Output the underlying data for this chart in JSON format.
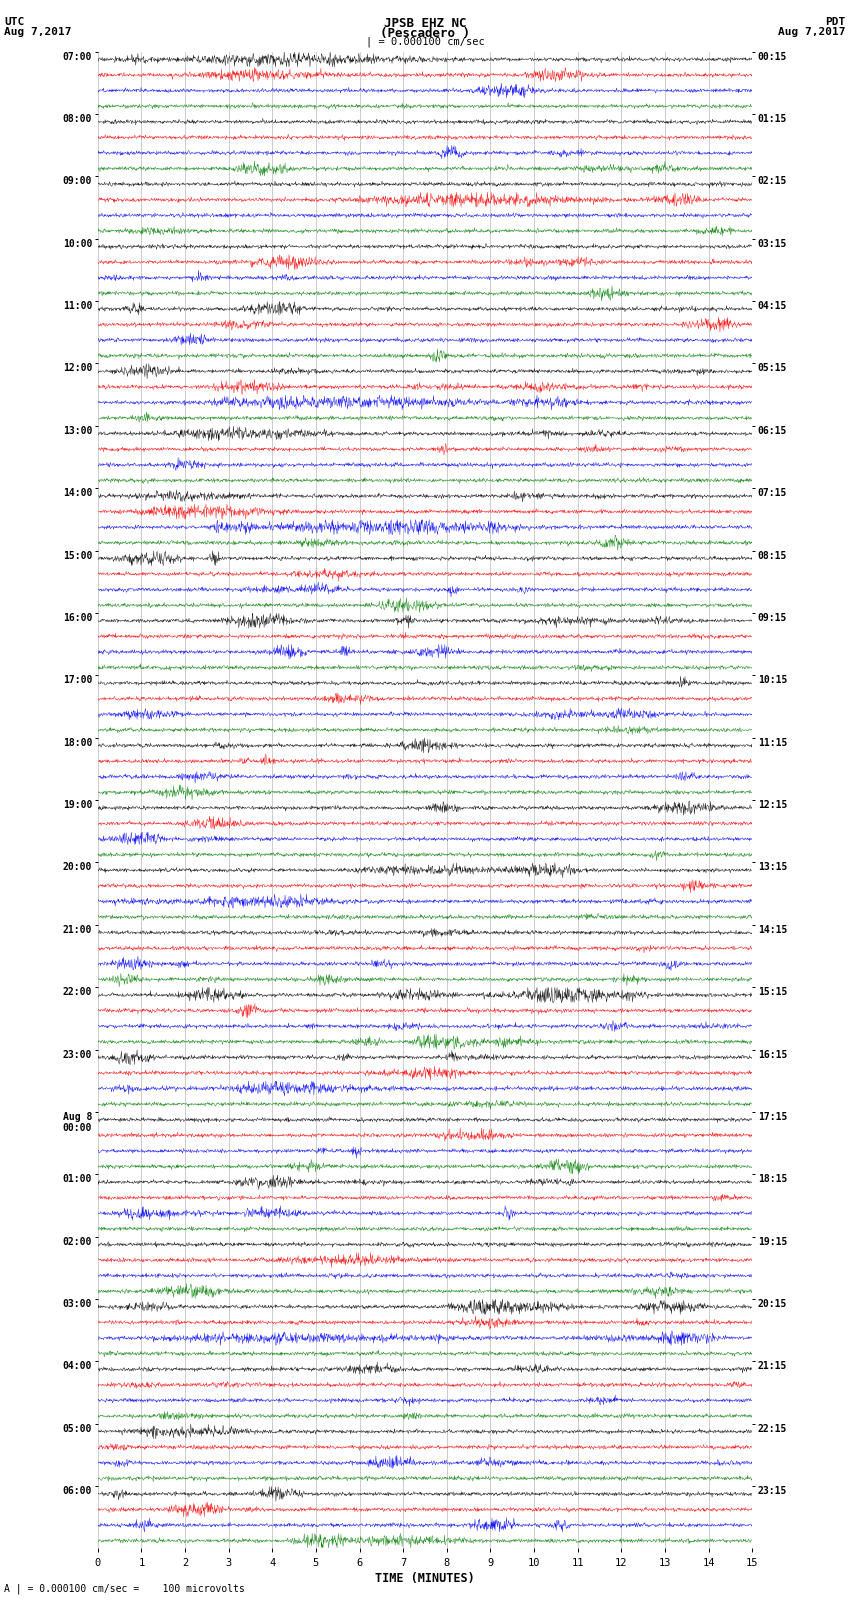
{
  "title_line1": "JPSB EHZ NC",
  "title_line2": "(Pescadero )",
  "title_scale": "| = 0.000100 cm/sec",
  "left_header_line1": "UTC",
  "left_header_line2": "Aug 7,2017",
  "right_header_line1": "PDT",
  "right_header_line2": "Aug 7,2017",
  "xlabel": "TIME (MINUTES)",
  "footer": "A | = 0.000100 cm/sec =    100 microvolts",
  "utc_label_list": [
    "07:00",
    "08:00",
    "09:00",
    "10:00",
    "11:00",
    "12:00",
    "13:00",
    "14:00",
    "15:00",
    "16:00",
    "17:00",
    "18:00",
    "19:00",
    "20:00",
    "21:00",
    "22:00",
    "23:00",
    "Aug 8\n00:00",
    "01:00",
    "02:00",
    "03:00",
    "04:00",
    "05:00",
    "06:00"
  ],
  "pdt_label_list": [
    "00:15",
    "01:15",
    "02:15",
    "03:15",
    "04:15",
    "05:15",
    "06:15",
    "07:15",
    "08:15",
    "09:15",
    "10:15",
    "11:15",
    "12:15",
    "13:15",
    "14:15",
    "15:15",
    "16:15",
    "17:15",
    "18:15",
    "19:15",
    "20:15",
    "21:15",
    "22:15",
    "23:15"
  ],
  "trace_colors": [
    "black",
    "red",
    "blue",
    "green"
  ],
  "n_rows": 96,
  "n_minutes": 15,
  "samples_per_minute": 100,
  "background_color": "white",
  "grid_color": "#aaaaaa",
  "fig_width": 8.5,
  "fig_height": 16.13
}
